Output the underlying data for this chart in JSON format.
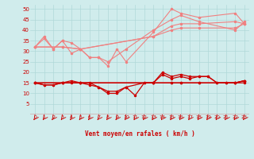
{
  "x": [
    0,
    1,
    2,
    3,
    4,
    5,
    6,
    7,
    8,
    9,
    10,
    11,
    12,
    13,
    14,
    15,
    16,
    17,
    18,
    19,
    20,
    21,
    22,
    23
  ],
  "series_light": [
    [
      32,
      37,
      31,
      35,
      29,
      31,
      27,
      27,
      23,
      31,
      25,
      null,
      null,
      39,
      null,
      50,
      48,
      null,
      46,
      null,
      null,
      null,
      48,
      43
    ],
    [
      32,
      36,
      31,
      35,
      34,
      31,
      27,
      27,
      25,
      null,
      31,
      null,
      null,
      40,
      null,
      45,
      47,
      null,
      44,
      null,
      null,
      null,
      40,
      44
    ],
    [
      32,
      null,
      null,
      32,
      null,
      31,
      null,
      null,
      null,
      null,
      null,
      null,
      null,
      37,
      null,
      42,
      43,
      null,
      43,
      null,
      null,
      null,
      44,
      43
    ],
    [
      32,
      null,
      null,
      32,
      null,
      31,
      null,
      null,
      null,
      null,
      null,
      null,
      null,
      37,
      null,
      40,
      41,
      null,
      41,
      null,
      null,
      null,
      41,
      43
    ]
  ],
  "series_dark": [
    [
      15,
      14,
      14,
      15,
      16,
      15,
      14,
      13,
      11,
      11,
      13,
      9,
      15,
      15,
      20,
      18,
      19,
      18,
      18,
      18,
      15,
      15,
      15,
      16
    ],
    [
      15,
      14,
      14,
      15,
      15,
      15,
      15,
      13,
      10,
      10,
      13,
      null,
      15,
      15,
      19,
      17,
      18,
      17,
      18,
      18,
      15,
      15,
      15,
      15
    ],
    [
      15,
      null,
      null,
      15,
      null,
      15,
      null,
      null,
      null,
      null,
      null,
      null,
      null,
      15,
      null,
      15,
      15,
      null,
      15,
      null,
      null,
      null,
      15,
      16
    ],
    [
      15,
      null,
      null,
      15,
      null,
      15,
      null,
      null,
      null,
      null,
      null,
      null,
      null,
      15,
      null,
      15,
      15,
      null,
      15,
      null,
      null,
      null,
      15,
      16
    ]
  ],
  "light_color": "#f08080",
  "dark_color": "#cc0000",
  "bg_color": "#d0ecec",
  "grid_color": "#b0d8d8",
  "xlabel": "Vent moyen/en rafales ( km/h )",
  "ylim": [
    0,
    52
  ],
  "yticks": [
    5,
    10,
    15,
    20,
    25,
    30,
    35,
    40,
    45,
    50
  ],
  "xticks": [
    0,
    1,
    2,
    3,
    4,
    5,
    6,
    7,
    8,
    9,
    10,
    11,
    12,
    13,
    14,
    15,
    16,
    17,
    18,
    19,
    20,
    21,
    22,
    23
  ]
}
